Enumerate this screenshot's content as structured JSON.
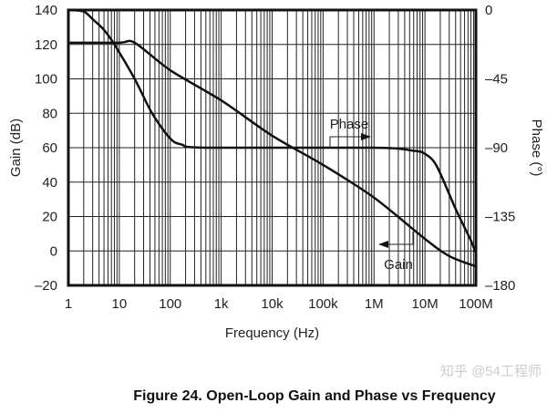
{
  "chart_data": {
    "type": "line",
    "title": "Figure 24. Open-Loop Gain and Phase vs Frequency",
    "xlabel": "Frequency (Hz)",
    "ylabel": "Gain (dB)",
    "y2label": "Phase (°)",
    "xscale": "log",
    "xlim": [
      1,
      100000000
    ],
    "ylim": [
      -20,
      140
    ],
    "y2lim": [
      -180,
      0
    ],
    "xticks": [
      {
        "v": 1,
        "t": "1"
      },
      {
        "v": 10,
        "t": "10"
      },
      {
        "v": 100,
        "t": "100"
      },
      {
        "v": 1000,
        "t": "1k"
      },
      {
        "v": 10000,
        "t": "10k"
      },
      {
        "v": 100000,
        "t": "100k"
      },
      {
        "v": 1000000,
        "t": "1M"
      },
      {
        "v": 10000000,
        "t": "10M"
      },
      {
        "v": 100000000,
        "t": "100M"
      }
    ],
    "yticks": [
      {
        "v": 140,
        "t": "140"
      },
      {
        "v": 120,
        "t": "120"
      },
      {
        "v": 100,
        "t": "100"
      },
      {
        "v": 80,
        "t": "80"
      },
      {
        "v": 60,
        "t": "60"
      },
      {
        "v": 40,
        "t": "40"
      },
      {
        "v": 20,
        "t": "20"
      },
      {
        "v": 0,
        "t": "0"
      },
      {
        "v": -20,
        "t": "–20"
      }
    ],
    "y2ticks": [
      {
        "v": 0,
        "t": "0"
      },
      {
        "v": -45,
        "t": "–45"
      },
      {
        "v": -90,
        "t": "–90"
      },
      {
        "v": -135,
        "t": "–135"
      },
      {
        "v": -180,
        "t": "–180"
      }
    ],
    "grid": true,
    "series": [
      {
        "name": "Gain",
        "axis": "left",
        "x": [
          1,
          10,
          20,
          100,
          1000,
          10000,
          100000,
          1000000,
          10000000,
          30000000,
          100000000
        ],
        "y": [
          121,
          121,
          121,
          105,
          87.5,
          67,
          50,
          31,
          7,
          -3,
          -9
        ]
      },
      {
        "name": "Phase",
        "axis": "right",
        "x": [
          1,
          2,
          3,
          5,
          8,
          20,
          44,
          100,
          170,
          500,
          1000000,
          6000000,
          10000000,
          17000000,
          40000000,
          78000000,
          100000000
        ],
        "y": [
          0,
          -1,
          -6,
          -13,
          -22.5,
          -45,
          -67.5,
          -84,
          -88,
          -90,
          -90,
          -92,
          -94,
          -102,
          -130,
          -150,
          -159
        ]
      }
    ],
    "annotations": [
      {
        "text": "Phase",
        "arrow": "right"
      },
      {
        "text": "Gain",
        "arrow": "left"
      }
    ]
  },
  "watermark": "知乎 @54工程师"
}
